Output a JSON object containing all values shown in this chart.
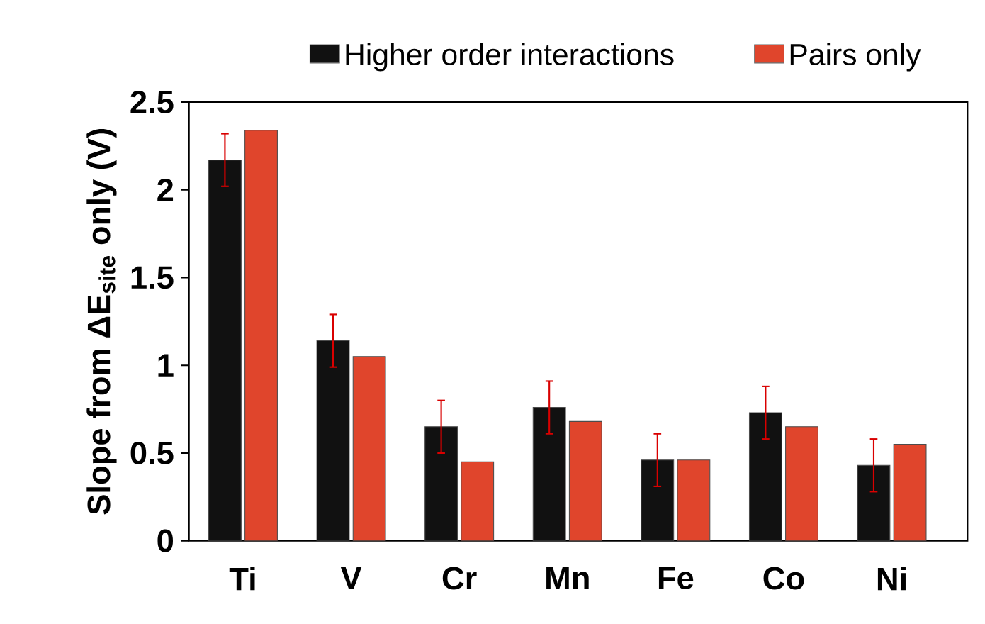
{
  "chart_data": {
    "type": "bar",
    "ylabel": "Slope from ΔE$_{site}$ only (V)",
    "categories": [
      "Ti",
      "V",
      "Cr",
      "Mn",
      "Fe",
      "Co",
      "Ni"
    ],
    "series": [
      {
        "name": "Higher order interactions",
        "color": "#111111",
        "values": [
          2.17,
          1.14,
          0.65,
          0.76,
          0.46,
          0.73,
          0.43
        ],
        "errors": [
          0.15,
          0.15,
          0.15,
          0.15,
          0.15,
          0.15,
          0.15
        ]
      },
      {
        "name": "Pairs only",
        "color": "#e0452c",
        "values": [
          2.34,
          1.05,
          0.45,
          0.68,
          0.46,
          0.65,
          0.55
        ]
      }
    ],
    "ylim": [
      0,
      2.5
    ],
    "yticks": [
      0,
      0.5,
      1,
      1.5,
      2,
      2.5
    ],
    "legend": "top"
  }
}
